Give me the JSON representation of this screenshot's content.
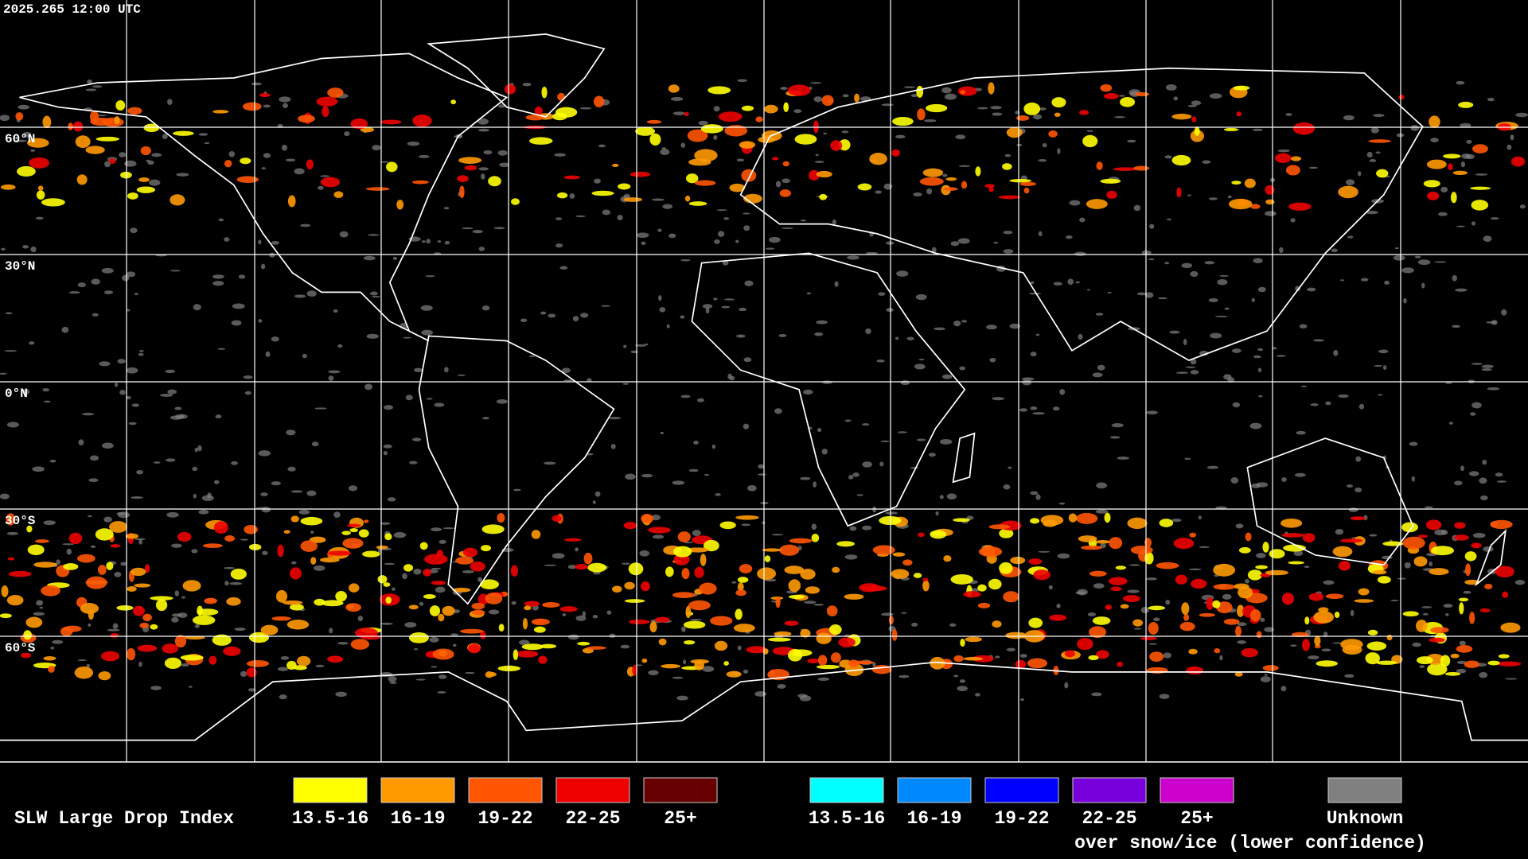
{
  "header": {
    "timestamp": "2025.265 12:00 UTC"
  },
  "map": {
    "lat_labels": [
      "60°N",
      "30°N",
      "0°N",
      "30°S",
      "60°S"
    ]
  },
  "legend": {
    "title": "SLW Large Drop Index",
    "items": [
      {
        "label": "13.5-16",
        "color": "#ffff00"
      },
      {
        "label": "16-19",
        "color": "#ff9900"
      },
      {
        "label": "19-22",
        "color": "#ff5500"
      },
      {
        "label": "22-25",
        "color": "#ee0000"
      },
      {
        "label": "25+",
        "color": "#660000"
      }
    ],
    "snow_items": [
      {
        "label": "13.5-16",
        "color": "#00ffff"
      },
      {
        "label": "16-19",
        "color": "#0088ff"
      },
      {
        "label": "19-22",
        "color": "#0000ff"
      },
      {
        "label": "22-25",
        "color": "#7700dd"
      },
      {
        "label": "25+",
        "color": "#cc00cc"
      }
    ],
    "snow_caption": "over snow/ice (lower confidence)",
    "unknown": {
      "label": "Unknown",
      "color": "#808080"
    }
  }
}
